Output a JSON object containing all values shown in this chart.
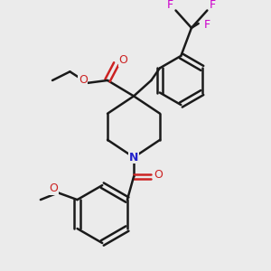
{
  "bg_color": "#ebebeb",
  "bond_color": "#1a1a1a",
  "bond_width": 1.8,
  "N_color": "#2222cc",
  "O_color": "#cc2222",
  "F_color": "#cc00cc",
  "figsize": [
    3.0,
    3.0
  ],
  "dpi": 100,
  "xlim": [
    0,
    300
  ],
  "ylim": [
    0,
    300
  ]
}
